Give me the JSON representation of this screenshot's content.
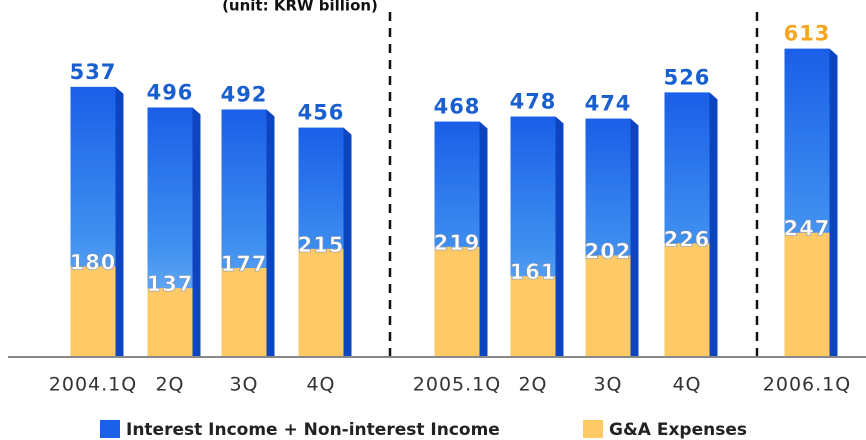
{
  "chart_data": {
    "type": "bar",
    "subtitle": "(unit: KRW billion)",
    "categories": [
      "2004.1Q",
      "2Q",
      "3Q",
      "4Q",
      "2005.1Q",
      "2Q",
      "3Q",
      "4Q",
      "2006.1Q"
    ],
    "series": [
      {
        "name": "Interest Income + Non-interest Income",
        "color": "#1a5fe8",
        "values": [
          537,
          496,
          492,
          456,
          468,
          478,
          474,
          526,
          613
        ],
        "label_colors": [
          "#1a5fd0",
          "#1a5fd0",
          "#1a5fd0",
          "#1a5fd0",
          "#1a5fd0",
          "#1a5fd0",
          "#1a5fd0",
          "#1a5fd0",
          "#f5a623"
        ]
      },
      {
        "name": "G&A Expenses",
        "color": "#ffc966",
        "values": [
          180,
          137,
          177,
          215,
          219,
          161,
          202,
          226,
          247
        ]
      }
    ],
    "ylim": [
      0,
      650
    ]
  }
}
